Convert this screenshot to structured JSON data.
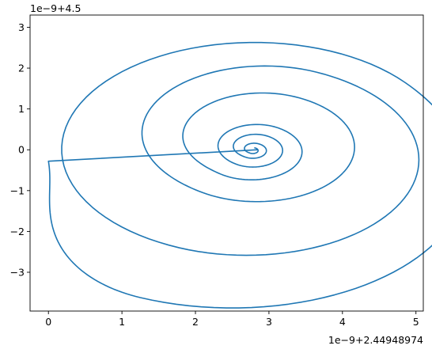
{
  "chart_data": {
    "type": "line",
    "title": "",
    "xlabel": "",
    "ylabel": "",
    "x_offset_text": "1e−9+2.44948974",
    "y_offset_text": "1e−9+4.5",
    "xlim": [
      -0.25,
      5.1
    ],
    "ylim": [
      -3.95,
      3.3
    ],
    "x_ticks": [
      0,
      1,
      2,
      3,
      4,
      5
    ],
    "x_tick_labels": [
      "0",
      "1",
      "2",
      "3",
      "4",
      "5"
    ],
    "y_ticks": [
      -3,
      -2,
      -1,
      0,
      1,
      2,
      3
    ],
    "y_tick_labels": [
      "−3",
      "−2",
      "−1",
      "0",
      "1",
      "2",
      "3"
    ],
    "grid": false,
    "legend": "none",
    "series": [
      {
        "color": "#1f77b4",
        "start": [
          2.85,
          0.0
        ],
        "initial_segment_end": [
          0.0,
          -0.28
        ],
        "spiral_center": [
          2.78,
          -0.02
        ],
        "spiral_extrema": [
          [
            0.0,
            -0.28
          ],
          [
            1.25,
            -3.62
          ],
          [
            4.85,
            1.65
          ],
          [
            1.78,
            -2.4
          ],
          [
            3.65,
            1.9
          ],
          [
            2.1,
            -1.05
          ],
          [
            3.35,
            1.3
          ],
          [
            2.35,
            -0.6
          ],
          [
            3.1,
            0.55
          ],
          [
            2.55,
            -0.35
          ],
          [
            2.95,
            0.35
          ],
          [
            2.68,
            -0.18
          ],
          [
            2.85,
            0.15
          ],
          [
            2.74,
            -0.08
          ],
          [
            2.8,
            0.05
          ]
        ]
      }
    ]
  }
}
